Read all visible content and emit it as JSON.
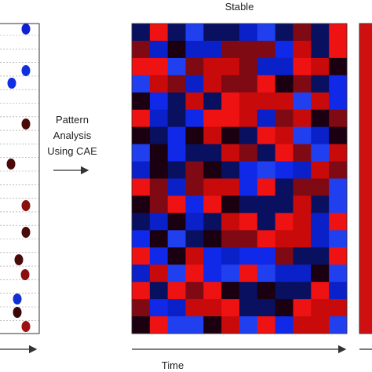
{
  "panel_title": "Stable",
  "arrow_label": {
    "lines": [
      "Pattern",
      "Analysis",
      "Using CAE"
    ]
  },
  "x_axis_label": "Time"
}
